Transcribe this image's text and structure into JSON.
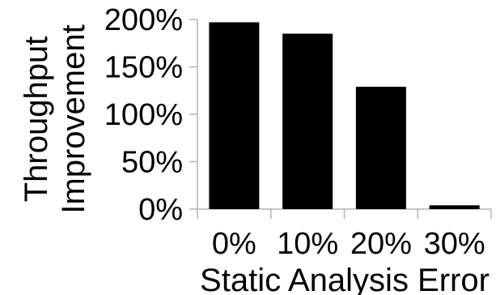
{
  "chart_data": {
    "type": "bar",
    "categories": [
      "0%",
      "10%",
      "20%",
      "30%"
    ],
    "values": [
      197,
      185,
      129,
      4
    ],
    "ylim": [
      0,
      200
    ],
    "y_ticks": [
      0,
      50,
      100,
      150,
      200
    ],
    "y_tick_labels": [
      "0%",
      "50%",
      "100%",
      "150%",
      "200%"
    ],
    "xlabel": "Static Analysis Error",
    "ylabel_lines": [
      "Throughput",
      "Improvement"
    ],
    "bar_color": "#000000",
    "axis_color": "#b3b3b3",
    "grid": false,
    "legend": "none"
  }
}
